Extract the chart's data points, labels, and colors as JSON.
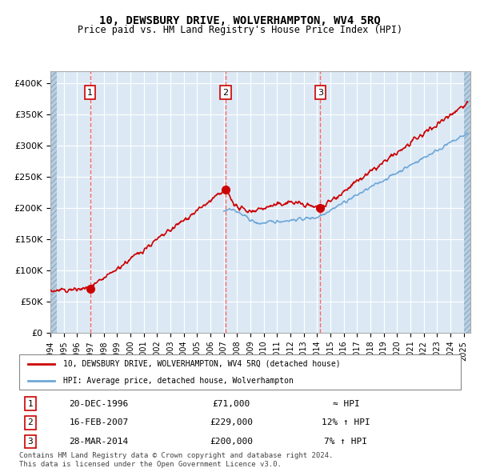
{
  "title": "10, DEWSBURY DRIVE, WOLVERHAMPTON, WV4 5RQ",
  "subtitle": "Price paid vs. HM Land Registry's House Price Index (HPI)",
  "hpi_line_color": "#6fa8d8",
  "price_line_color": "#cc0000",
  "marker_color": "#cc0000",
  "bg_color": "#dce9f5",
  "grid_color": "#ffffff",
  "vline_color": "#ff6666",
  "purchases": [
    {
      "date_num": 1996.97,
      "price": 71000,
      "label": "1",
      "date_str": "20-DEC-1996",
      "hpi_rel": "≈ HPI"
    },
    {
      "date_num": 2007.12,
      "price": 229000,
      "label": "2",
      "date_str": "16-FEB-2007",
      "hpi_rel": "12% ↑ HPI"
    },
    {
      "date_num": 2014.24,
      "price": 200000,
      "label": "3",
      "date_str": "28-MAR-2014",
      "hpi_rel": "7% ↑ HPI"
    }
  ],
  "legend_label_red": "10, DEWSBURY DRIVE, WOLVERHAMPTON, WV4 5RQ (detached house)",
  "legend_label_blue": "HPI: Average price, detached house, Wolverhampton",
  "footer": "Contains HM Land Registry data © Crown copyright and database right 2024.\nThis data is licensed under the Open Government Licence v3.0.",
  "ylim": [
    0,
    420000
  ],
  "xlim_start": 1994.0,
  "xlim_end": 2025.5,
  "yticks": [
    0,
    50000,
    100000,
    150000,
    200000,
    250000,
    300000,
    350000,
    400000
  ],
  "ytick_labels": [
    "£0",
    "£50K",
    "£100K",
    "£150K",
    "£200K",
    "£250K",
    "£300K",
    "£350K",
    "£400K"
  ],
  "xtick_years": [
    1994,
    1995,
    1996,
    1997,
    1998,
    1999,
    2000,
    2001,
    2002,
    2003,
    2004,
    2005,
    2006,
    2007,
    2008,
    2009,
    2010,
    2011,
    2012,
    2013,
    2014,
    2015,
    2016,
    2017,
    2018,
    2019,
    2020,
    2021,
    2022,
    2023,
    2024,
    2025
  ]
}
